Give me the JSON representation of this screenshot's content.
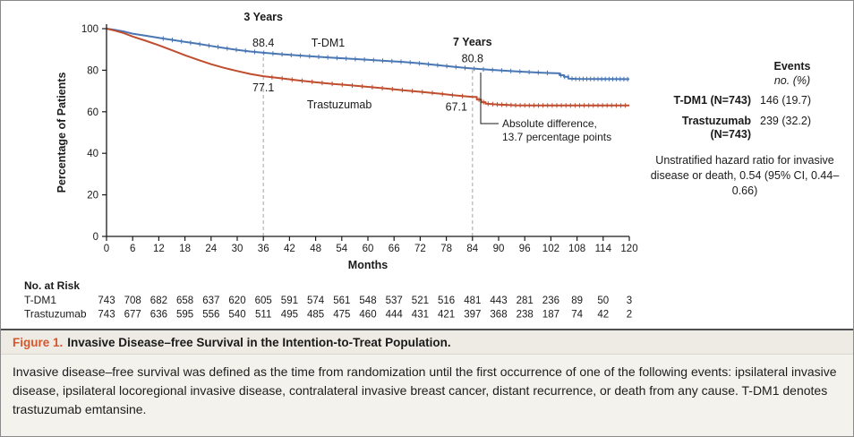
{
  "figure": {
    "caption_label": "Figure 1.",
    "caption_title": "Invasive Disease–free Survival in the Intention-to-Treat Population.",
    "body_text": "Invasive disease–free survival was defined as the time from randomization until the first occurrence of one of the following events: ipsilateral invasive disease, ipsilateral locoregional invasive disease, contralateral invasive breast cancer, distant recurrence, or death from any cause. T-DM1 denotes trastuzumab emtansine."
  },
  "stats_panel": {
    "events_header": "Events",
    "events_unit": "no. (%)",
    "rows": [
      {
        "label": "T-DM1 (N=743)",
        "value": "146 (19.7)"
      },
      {
        "label": "Trastuzumab (N=743)",
        "value": "239 (32.2)"
      }
    ],
    "hazard_text": "Unstratified hazard ratio for invasive disease or death, 0.54 (95% CI, 0.44–0.66)"
  },
  "chart_data": {
    "type": "line",
    "subtype": "kaplan-meier",
    "title": "",
    "xlabel": "Months",
    "ylabel": "Percentage of Patients",
    "xlim": [
      0,
      120
    ],
    "ylim": [
      0,
      100
    ],
    "xticks": [
      0,
      6,
      12,
      18,
      24,
      30,
      36,
      42,
      48,
      54,
      60,
      66,
      72,
      78,
      84,
      90,
      96,
      102,
      108,
      114,
      120
    ],
    "yticks": [
      0,
      20,
      40,
      60,
      80,
      100
    ],
    "legend_position": "on-curve",
    "grid": false,
    "series": [
      {
        "name": "T-DM1",
        "color": "#4a77b4",
        "points": [
          [
            0,
            100
          ],
          [
            2,
            99.4
          ],
          [
            4,
            98.6
          ],
          [
            6,
            97.6
          ],
          [
            9,
            96.6
          ],
          [
            12,
            95.6
          ],
          [
            15,
            94.6
          ],
          [
            18,
            93.6
          ],
          [
            21,
            92.7
          ],
          [
            24,
            91.7
          ],
          [
            27,
            90.7
          ],
          [
            30,
            89.8
          ],
          [
            33,
            89.0
          ],
          [
            36,
            88.4
          ],
          [
            40,
            87.7
          ],
          [
            44,
            87.1
          ],
          [
            48,
            86.5
          ],
          [
            52,
            86.0
          ],
          [
            56,
            85.5
          ],
          [
            60,
            85.0
          ],
          [
            64,
            84.5
          ],
          [
            68,
            84.0
          ],
          [
            72,
            83.3
          ],
          [
            76,
            82.4
          ],
          [
            80,
            81.6
          ],
          [
            84,
            80.8
          ],
          [
            88,
            80.2
          ],
          [
            92,
            79.7
          ],
          [
            96,
            79.2
          ],
          [
            100,
            78.8
          ],
          [
            104,
            78.5
          ],
          [
            104,
            77.6
          ],
          [
            105,
            77.6
          ],
          [
            105,
            76.8
          ],
          [
            106,
            76.8
          ],
          [
            106,
            76.0
          ],
          [
            108,
            75.8
          ],
          [
            120,
            75.7
          ]
        ]
      },
      {
        "name": "Trastuzumab",
        "color": "#bf4d2e",
        "points": [
          [
            0,
            100
          ],
          [
            2,
            99.0
          ],
          [
            4,
            97.8
          ],
          [
            6,
            96.2
          ],
          [
            9,
            94.2
          ],
          [
            12,
            92.0
          ],
          [
            15,
            89.6
          ],
          [
            18,
            87.2
          ],
          [
            21,
            85.0
          ],
          [
            24,
            82.9
          ],
          [
            27,
            81.1
          ],
          [
            30,
            79.6
          ],
          [
            33,
            78.2
          ],
          [
            36,
            77.1
          ],
          [
            40,
            76.1
          ],
          [
            44,
            75.1
          ],
          [
            48,
            74.2
          ],
          [
            52,
            73.4
          ],
          [
            56,
            72.7
          ],
          [
            60,
            72.0
          ],
          [
            64,
            71.2
          ],
          [
            68,
            70.4
          ],
          [
            72,
            69.6
          ],
          [
            76,
            68.8
          ],
          [
            80,
            67.9
          ],
          [
            84,
            67.1
          ],
          [
            85,
            67.1
          ],
          [
            85,
            65.8
          ],
          [
            86,
            65.8
          ],
          [
            86,
            64.6
          ],
          [
            87,
            64.6
          ],
          [
            87,
            63.9
          ],
          [
            90,
            63.5
          ],
          [
            94,
            63.1
          ],
          [
            98,
            63.0
          ],
          [
            120,
            63.0
          ]
        ]
      }
    ],
    "annotations": {
      "year3": {
        "label": "3 Years",
        "x": 36,
        "tdm1": "88.4",
        "trastuzumab": "77.1"
      },
      "year7": {
        "label": "7 Years",
        "x": 84,
        "tdm1": "80.8",
        "trastuzumab": "67.1"
      },
      "difference_line1": "Absolute difference,",
      "difference_line2": "13.7 percentage points"
    }
  },
  "risk_table": {
    "title": "No. at Risk",
    "rows": [
      {
        "label": "T-DM1",
        "values": [
          743,
          708,
          682,
          658,
          637,
          620,
          605,
          591,
          574,
          561,
          548,
          537,
          521,
          516,
          481,
          443,
          281,
          236,
          89,
          50,
          3
        ]
      },
      {
        "label": "Trastuzumab",
        "values": [
          743,
          677,
          636,
          595,
          556,
          540,
          511,
          495,
          485,
          475,
          460,
          444,
          431,
          421,
          397,
          368,
          238,
          187,
          74,
          42,
          2
        ]
      }
    ]
  }
}
